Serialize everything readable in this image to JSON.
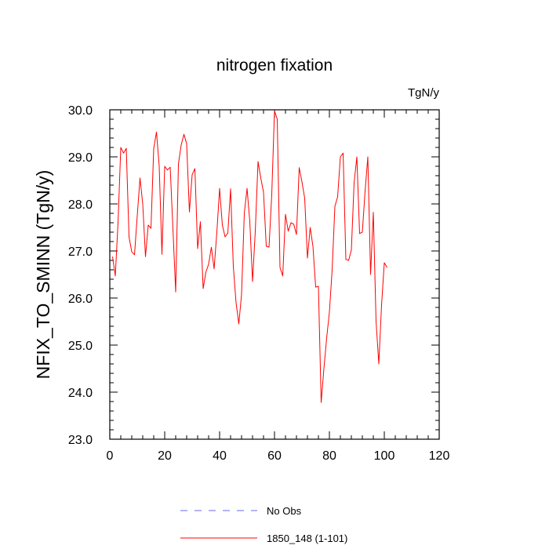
{
  "chart_data": {
    "type": "line",
    "title": "nitrogen fixation",
    "units": "TgN/y",
    "xlabel": "",
    "ylabel": "NFIX_TO_SMINN  (TgN/y)",
    "xlim": [
      0,
      120
    ],
    "ylim": [
      23.0,
      30.0
    ],
    "xticks": [
      0,
      20,
      40,
      60,
      80,
      100,
      120
    ],
    "yticks": [
      23.0,
      24.0,
      25.0,
      26.0,
      27.0,
      28.0,
      29.0,
      30.0
    ],
    "xtick_labels": [
      "0",
      "20",
      "40",
      "60",
      "80",
      "100",
      "120"
    ],
    "ytick_labels": [
      "23.0",
      "24.0",
      "25.0",
      "26.0",
      "27.0",
      "28.0",
      "29.0",
      "30.0"
    ],
    "series": [
      {
        "name": "No Obs",
        "color": "#6a6aee",
        "dash": true,
        "x": [],
        "values": []
      },
      {
        "name": "1850_148 (1-101)",
        "color": "#ff0000",
        "dash": false,
        "x": [
          1,
          2,
          3,
          4,
          5,
          6,
          7,
          8,
          9,
          10,
          11,
          12,
          13,
          14,
          15,
          16,
          17,
          18,
          19,
          20,
          21,
          22,
          23,
          24,
          25,
          26,
          27,
          28,
          29,
          30,
          31,
          32,
          33,
          34,
          35,
          36,
          37,
          38,
          39,
          40,
          41,
          42,
          43,
          44,
          45,
          46,
          47,
          48,
          49,
          50,
          51,
          52,
          53,
          54,
          55,
          56,
          57,
          58,
          59,
          60,
          61,
          62,
          63,
          64,
          65,
          66,
          67,
          68,
          69,
          70,
          71,
          72,
          73,
          74,
          75,
          76,
          77,
          78,
          79,
          80,
          81,
          82,
          83,
          84,
          85,
          86,
          87,
          88,
          89,
          90,
          91,
          92,
          93,
          94,
          95,
          96,
          97,
          98,
          99,
          100,
          101
        ],
        "values": [
          26.88,
          26.47,
          27.6,
          29.2,
          29.08,
          29.18,
          27.3,
          26.98,
          26.92,
          27.75,
          28.55,
          28.0,
          26.88,
          27.55,
          27.48,
          29.18,
          29.53,
          28.8,
          26.93,
          28.8,
          28.72,
          28.78,
          27.47,
          26.13,
          28.85,
          29.25,
          29.48,
          29.28,
          27.83,
          28.62,
          28.75,
          27.05,
          27.62,
          26.2,
          26.55,
          26.72,
          27.08,
          26.62,
          27.4,
          28.33,
          27.55,
          27.3,
          27.38,
          28.32,
          26.67,
          25.9,
          25.45,
          26.08,
          27.8,
          28.33,
          27.63,
          26.35,
          27.42,
          28.9,
          28.55,
          28.25,
          27.1,
          27.08,
          28.2,
          29.98,
          29.8,
          26.65,
          26.47,
          27.78,
          27.42,
          27.6,
          27.57,
          27.35,
          28.77,
          28.47,
          28.12,
          26.85,
          27.5,
          27.1,
          26.23,
          26.25,
          23.78,
          24.5,
          25.15,
          25.7,
          26.6,
          27.95,
          28.15,
          29.0,
          29.08,
          26.82,
          26.8,
          27.02,
          28.45,
          29.0,
          27.37,
          27.4,
          28.27,
          29.0,
          26.5,
          27.82,
          25.5,
          24.6,
          25.85,
          26.75,
          26.65
        ]
      }
    ],
    "legend": "bottom"
  }
}
